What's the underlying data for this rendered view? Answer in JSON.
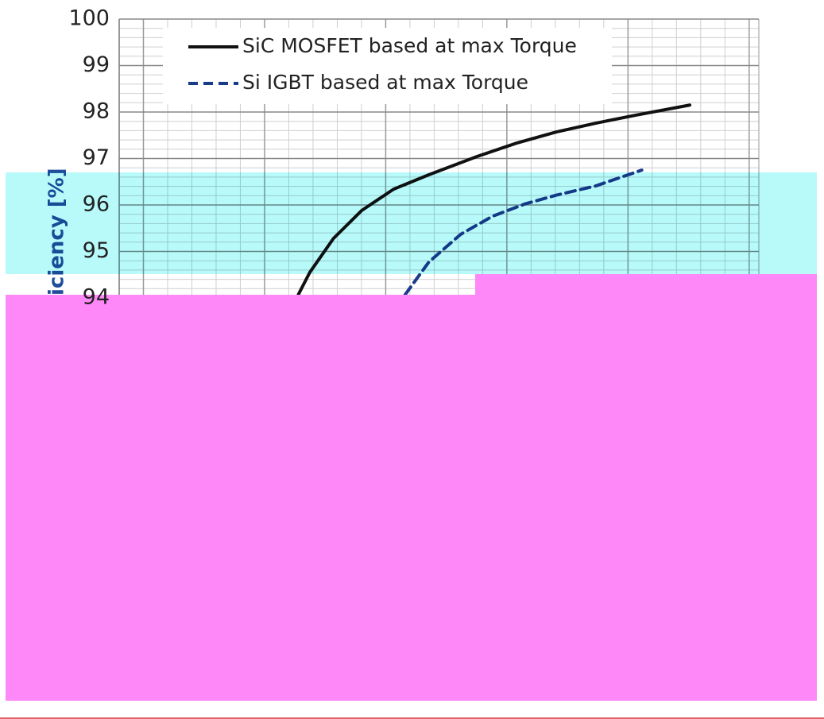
{
  "chart_data": {
    "type": "line",
    "y_label": "iciency [%]",
    "xlim": [
      0,
      100
    ],
    "ylim": [
      94,
      100
    ],
    "yticks": [
      94,
      95,
      96,
      97,
      98,
      99,
      100
    ],
    "grid": true,
    "legend": "upper-left",
    "series": [
      {
        "name": "SiC MOSFET based at max Torque",
        "color": "#111111",
        "dash": "solid",
        "x": [
          28,
          29.8,
          33.5,
          37.9,
          42.9,
          48.4,
          55.9,
          62.1,
          68.3,
          74.5,
          80.7,
          89.2
        ],
        "values": [
          94.07,
          94.55,
          95.28,
          95.88,
          96.34,
          96.65,
          97.04,
          97.33,
          97.57,
          97.76,
          97.93,
          98.15
        ]
      },
      {
        "name": "Si IGBT based at max Torque",
        "color": "#1a3a8a",
        "dash": "dashed",
        "x": [
          44.7,
          48.4,
          53.4,
          58.4,
          63.4,
          68.3,
          74.5,
          81.7
        ],
        "values": [
          94.07,
          94.77,
          95.37,
          95.76,
          96.02,
          96.21,
          96.41,
          96.75
        ]
      }
    ]
  }
}
